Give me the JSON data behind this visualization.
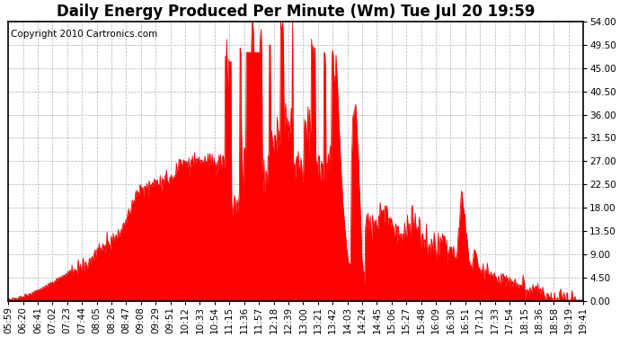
{
  "title": "Daily Energy Produced Per Minute (Wm) Tue Jul 20 19:59",
  "copyright": "Copyright 2010 Cartronics.com",
  "line_color": "#ff0000",
  "fill_color": "#ff0000",
  "bg_color": "#ffffff",
  "grid_color": "#b0b0b0",
  "ylim": [
    0,
    54.0
  ],
  "yticks": [
    0.0,
    4.5,
    9.0,
    13.5,
    18.0,
    22.5,
    27.0,
    31.5,
    36.0,
    40.5,
    45.0,
    49.5,
    54.0
  ],
  "ytick_labels": [
    "0.00",
    "4.50",
    "9.00",
    "13.50",
    "18.00",
    "22.50",
    "27.00",
    "31.50",
    "36.00",
    "40.50",
    "45.00",
    "49.50",
    "54.00"
  ],
  "xtick_labels": [
    "05:59",
    "06:20",
    "06:41",
    "07:02",
    "07:23",
    "07:44",
    "08:05",
    "08:26",
    "08:47",
    "09:08",
    "09:29",
    "09:51",
    "10:12",
    "10:33",
    "10:54",
    "11:15",
    "11:36",
    "11:57",
    "12:18",
    "12:39",
    "13:00",
    "13:21",
    "13:42",
    "14:03",
    "14:24",
    "14:45",
    "15:06",
    "15:27",
    "15:48",
    "16:09",
    "16:30",
    "16:51",
    "17:12",
    "17:33",
    "17:54",
    "18:15",
    "18:36",
    "18:58",
    "19:19",
    "19:41"
  ],
  "title_fontsize": 12,
  "tick_fontsize": 7.5,
  "copyright_fontsize": 7.5
}
